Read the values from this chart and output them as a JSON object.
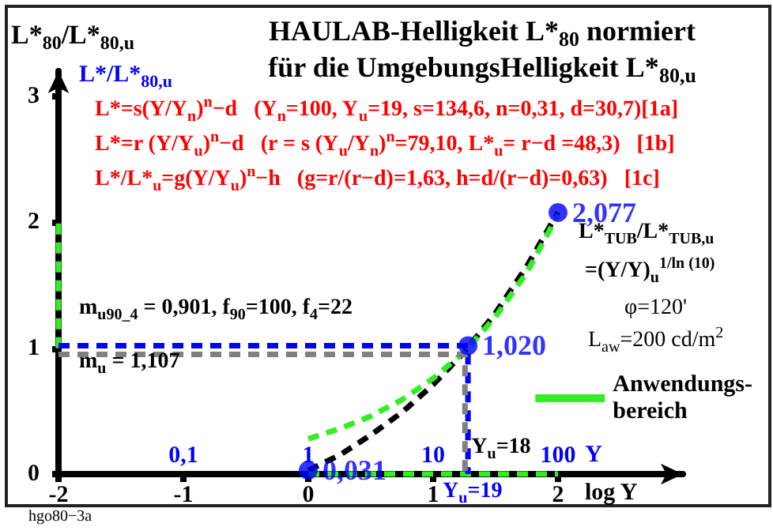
{
  "chart_data": {
    "type": "line",
    "title": "HAULAB-Helligkeit L*$_{80}$ normiert\nfür die UmgebungsHelligkeit L*$_{80,u}$",
    "xlabel": "log Y",
    "ylabel": "L*$_{80}$/L*$_{80,u}$",
    "x2label": "Y",
    "xlim": [
      -2,
      3
    ],
    "xticks": [
      -2,
      -1,
      0,
      1,
      2
    ],
    "x2lim": [
      0.01,
      1000
    ],
    "x2ticks": [
      {
        "value": 0.1,
        "label": "0,1"
      },
      1,
      10,
      100
    ],
    "log": "x2",
    "ylim": [
      0,
      3.2
    ],
    "yticks": [
      0,
      1,
      2,
      3
    ],
    "grid": false,
    "legend": "right",
    "line_style": "dashed",
    "marker": "none",
    "series": [
      {
        "color": "#000000",
        "x": [
          0,
          0.25,
          0.5,
          0.75,
          1,
          1.25,
          1.5,
          1.75,
          2
        ],
        "values": [
          0.03,
          0.15,
          0.31,
          0.49,
          0.71,
          0.97,
          1.28,
          1.65,
          2.08
        ]
      },
      {
        "color": "#33ee22",
        "x": [
          0,
          0.25,
          0.5,
          0.75,
          1,
          1.25,
          1.5,
          1.75,
          2
        ],
        "values": [
          0.28,
          0.36,
          0.46,
          0.59,
          0.76,
          0.97,
          1.25,
          1.6,
          2.06
        ]
      },
      {
        "name": "Anwendungs-bereich",
        "color": "#33ee22",
        "x": [
          0,
          2,
          null,
          -2,
          -2
        ],
        "values": [
          0,
          0,
          null,
          1,
          2
        ]
      },
      {
        "color": "#0000ff",
        "x": [
          -2,
          1.279,
          1.279
        ],
        "values": [
          1.02,
          1.02,
          0
        ]
      },
      {
        "color": "#808080",
        "x": [
          -2,
          1.255,
          1.255
        ],
        "values": [
          0.95,
          0.95,
          0
        ]
      },
      {
        "type": "scatter",
        "color": "#0000ff",
        "marker": "circle",
        "x": [
          0,
          1.279,
          2
        ],
        "values": [
          0.031,
          1.02,
          2.077
        ],
        "value_labels": [
          "0,031",
          "1,020",
          "2,077"
        ]
      }
    ],
    "annotations": [
      "L*/L*$_{80,u}$",
      "L*=s(Y/Y$_{n}$)$^{n}$−d   (Y$_{n}$=100, Y$_{u}$=19, s=134,6, n=0,31, d=30,7)[1a]",
      "L*=r (Y/Y$_{u}$)$^{n}$−d   (r = s (Y$_{u}$/Y$_{n}$)$^{n}$=79,10, L*$_{u}$= r−d =48,3)   [1b]",
      "L*/L*$_{u}$=g(Y/Y$_{u}$)$^{n}$−h   (g=r/(r−d)=1,63, h=d/(r−d)=0,63)   [1c]",
      "m$_{u90_4}$ = 0,901, f$_{90}$=100, f$_{4}$=22",
      "m$_{u}$ = 1,107",
      "L*$_{TUB}$/L*$_{TUB,u}$",
      "=(Y/Y)$_{u}$$^{1/ln (10)}$",
      "φ=120'",
      "L$_{aw}$=200 cd/m$^{2}$",
      {
        "text": "Y$_{u}$=18",
        "x": 1.255,
        "y": 0
      },
      {
        "text": "Y$_{u}$=19",
        "x": 1.279,
        "y": 0
      },
      "hgo80−3a"
    ]
  }
}
